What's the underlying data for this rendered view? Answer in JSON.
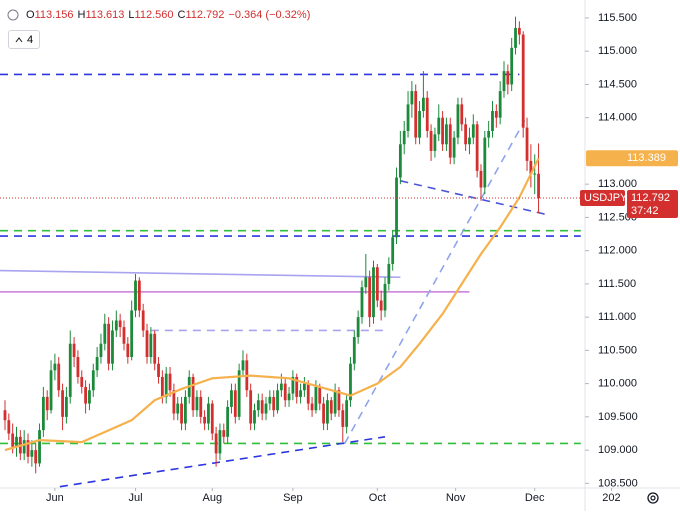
{
  "chart_data": {
    "type": "candlestick",
    "header": [
      "O",
      "113.156",
      "H",
      "113.613",
      "L",
      "112.560",
      "C",
      "112.792",
      "−0.364 (−0.32%)"
    ],
    "indicator_count": "4",
    "symbol": "USDJPY",
    "countdown": "37:42",
    "up_color": "#1b8a3a",
    "down_color": "#d32f2f",
    "candles": [
      [
        109.6,
        109.75,
        109.3,
        109.45
      ],
      [
        109.45,
        109.55,
        109.15,
        109.25
      ],
      [
        109.25,
        109.4,
        108.95,
        109.05
      ],
      [
        109.05,
        109.35,
        108.9,
        109.2
      ],
      [
        109.2,
        109.3,
        108.85,
        108.95
      ],
      [
        108.95,
        109.3,
        108.85,
        109.15
      ],
      [
        109.15,
        109.25,
        108.8,
        108.9
      ],
      [
        108.9,
        109.15,
        108.75,
        109.0
      ],
      [
        109.0,
        109.1,
        108.65,
        108.8
      ],
      [
        108.8,
        109.4,
        108.75,
        109.3
      ],
      [
        109.3,
        109.95,
        109.2,
        109.8
      ],
      [
        109.8,
        109.9,
        109.45,
        109.6
      ],
      [
        109.6,
        110.35,
        109.55,
        110.2
      ],
      [
        110.2,
        110.45,
        110.05,
        110.3
      ],
      [
        110.3,
        110.4,
        109.8,
        109.9
      ],
      [
        109.9,
        110.0,
        109.3,
        109.5
      ],
      [
        109.5,
        109.95,
        109.4,
        109.8
      ],
      [
        109.8,
        110.8,
        109.7,
        110.6
      ],
      [
        110.6,
        110.7,
        110.25,
        110.4
      ],
      [
        110.4,
        110.5,
        110.0,
        110.1
      ],
      [
        110.1,
        110.2,
        109.85,
        109.95
      ],
      [
        109.95,
        110.05,
        109.55,
        109.7
      ],
      [
        109.7,
        110.0,
        109.6,
        109.9
      ],
      [
        109.9,
        110.3,
        109.8,
        110.2
      ],
      [
        110.2,
        110.55,
        110.1,
        110.4
      ],
      [
        110.4,
        110.75,
        110.3,
        110.6
      ],
      [
        110.6,
        111.05,
        110.5,
        110.9
      ],
      [
        110.9,
        111.0,
        110.2,
        110.3
      ],
      [
        110.3,
        110.95,
        110.2,
        110.8
      ],
      [
        110.8,
        111.1,
        110.7,
        110.95
      ],
      [
        110.95,
        111.05,
        110.7,
        110.85
      ],
      [
        110.85,
        110.95,
        110.5,
        110.6
      ],
      [
        110.6,
        110.7,
        110.3,
        110.4
      ],
      [
        110.4,
        111.25,
        110.35,
        111.1
      ],
      [
        111.1,
        111.65,
        111.0,
        111.55
      ],
      [
        111.55,
        111.6,
        111.0,
        111.1
      ],
      [
        111.1,
        111.2,
        110.7,
        110.8
      ],
      [
        110.8,
        110.9,
        110.3,
        110.4
      ],
      [
        110.4,
        110.85,
        110.3,
        110.75
      ],
      [
        110.75,
        110.8,
        110.2,
        110.3
      ],
      [
        110.3,
        110.4,
        110.0,
        110.1
      ],
      [
        110.1,
        110.2,
        109.7,
        109.8
      ],
      [
        109.8,
        110.25,
        109.7,
        110.15
      ],
      [
        110.15,
        110.25,
        109.8,
        109.9
      ],
      [
        109.9,
        110.0,
        109.45,
        109.55
      ],
      [
        109.55,
        109.8,
        109.45,
        109.7
      ],
      [
        109.7,
        109.8,
        109.3,
        109.4
      ],
      [
        109.4,
        109.9,
        109.3,
        109.8
      ],
      [
        109.8,
        110.2,
        109.7,
        110.1
      ],
      [
        110.1,
        110.15,
        109.5,
        109.6
      ],
      [
        109.6,
        109.9,
        109.5,
        109.8
      ],
      [
        109.8,
        109.9,
        109.4,
        109.5
      ],
      [
        109.5,
        109.6,
        109.3,
        109.4
      ],
      [
        109.4,
        109.8,
        109.3,
        109.7
      ],
      [
        109.7,
        109.75,
        109.15,
        109.25
      ],
      [
        109.25,
        109.35,
        108.75,
        108.95
      ],
      [
        108.95,
        109.4,
        108.85,
        109.3
      ],
      [
        109.3,
        109.4,
        109.1,
        109.2
      ],
      [
        109.2,
        109.75,
        109.1,
        109.65
      ],
      [
        109.65,
        110.0,
        109.55,
        109.9
      ],
      [
        109.9,
        110.0,
        109.4,
        109.5
      ],
      [
        109.5,
        110.3,
        109.45,
        110.2
      ],
      [
        110.2,
        110.5,
        110.1,
        110.35
      ],
      [
        110.35,
        110.45,
        109.8,
        109.9
      ],
      [
        109.9,
        110.0,
        109.3,
        109.4
      ],
      [
        109.4,
        109.7,
        109.3,
        109.6
      ],
      [
        109.6,
        109.85,
        109.5,
        109.75
      ],
      [
        109.75,
        109.85,
        109.45,
        109.55
      ],
      [
        109.55,
        109.8,
        109.45,
        109.7
      ],
      [
        109.7,
        109.9,
        109.6,
        109.8
      ],
      [
        109.8,
        109.9,
        109.5,
        109.6
      ],
      [
        109.6,
        110.0,
        109.55,
        109.9
      ],
      [
        109.9,
        110.15,
        109.8,
        110.0
      ],
      [
        110.0,
        110.1,
        109.65,
        109.75
      ],
      [
        109.75,
        109.95,
        109.65,
        109.85
      ],
      [
        109.85,
        110.2,
        109.75,
        110.1
      ],
      [
        110.1,
        110.15,
        109.7,
        109.8
      ],
      [
        109.8,
        110.0,
        109.7,
        109.9
      ],
      [
        109.9,
        110.1,
        109.8,
        110.0
      ],
      [
        110.0,
        110.05,
        109.6,
        109.7
      ],
      [
        109.7,
        109.8,
        109.5,
        109.6
      ],
      [
        109.6,
        110.05,
        109.55,
        109.95
      ],
      [
        109.95,
        110.0,
        109.6,
        109.7
      ],
      [
        109.7,
        109.8,
        109.3,
        109.4
      ],
      [
        109.4,
        109.85,
        109.3,
        109.75
      ],
      [
        109.75,
        109.8,
        109.45,
        109.55
      ],
      [
        109.55,
        110.0,
        109.5,
        109.9
      ],
      [
        109.9,
        109.95,
        109.5,
        109.6
      ],
      [
        109.6,
        109.7,
        109.12,
        109.35
      ],
      [
        109.35,
        109.85,
        109.25,
        109.75
      ],
      [
        109.75,
        110.4,
        109.65,
        110.3
      ],
      [
        110.3,
        110.8,
        110.2,
        110.7
      ],
      [
        110.7,
        111.1,
        110.6,
        111.0
      ],
      [
        111.0,
        111.55,
        110.9,
        111.45
      ],
      [
        111.45,
        111.95,
        111.35,
        111.6
      ],
      [
        111.6,
        111.7,
        110.85,
        111.0
      ],
      [
        111.0,
        111.85,
        110.9,
        111.75
      ],
      [
        111.75,
        111.8,
        111.15,
        111.25
      ],
      [
        111.25,
        111.4,
        110.95,
        111.1
      ],
      [
        111.1,
        111.6,
        111.0,
        111.5
      ],
      [
        111.5,
        111.9,
        111.4,
        111.8
      ],
      [
        111.8,
        112.3,
        111.7,
        112.2
      ],
      [
        112.2,
        113.25,
        112.1,
        113.1
      ],
      [
        113.1,
        113.8,
        113.0,
        113.6
      ],
      [
        113.6,
        113.95,
        113.45,
        113.8
      ],
      [
        113.8,
        114.4,
        113.7,
        114.2
      ],
      [
        114.2,
        114.55,
        114.0,
        114.4
      ],
      [
        114.4,
        114.5,
        113.6,
        113.7
      ],
      [
        113.7,
        114.25,
        113.6,
        114.1
      ],
      [
        114.1,
        114.7,
        114.0,
        114.3
      ],
      [
        114.3,
        114.4,
        113.7,
        113.8
      ],
      [
        113.8,
        113.9,
        113.35,
        113.5
      ],
      [
        113.5,
        113.85,
        113.4,
        113.75
      ],
      [
        113.75,
        114.2,
        113.65,
        114.0
      ],
      [
        114.0,
        114.1,
        113.5,
        113.6
      ],
      [
        113.6,
        114.0,
        113.5,
        113.9
      ],
      [
        113.9,
        114.0,
        113.3,
        113.4
      ],
      [
        113.4,
        113.8,
        113.3,
        113.7
      ],
      [
        113.7,
        114.3,
        113.6,
        114.2
      ],
      [
        114.2,
        114.3,
        113.8,
        113.9
      ],
      [
        113.9,
        114.0,
        113.5,
        113.6
      ],
      [
        113.6,
        113.85,
        113.45,
        113.7
      ],
      [
        113.7,
        114.05,
        113.6,
        113.9
      ],
      [
        113.9,
        113.95,
        113.1,
        113.2
      ],
      [
        113.2,
        113.3,
        112.75,
        112.95
      ],
      [
        112.95,
        113.8,
        112.85,
        113.7
      ],
      [
        113.7,
        113.95,
        113.55,
        113.8
      ],
      [
        113.8,
        114.25,
        113.7,
        114.1
      ],
      [
        114.1,
        114.2,
        113.85,
        114.0
      ],
      [
        114.0,
        114.55,
        113.9,
        114.4
      ],
      [
        114.4,
        114.85,
        114.3,
        114.7
      ],
      [
        114.7,
        114.8,
        114.35,
        114.5
      ],
      [
        114.5,
        115.2,
        114.4,
        115.05
      ],
      [
        115.05,
        115.52,
        114.95,
        115.35
      ],
      [
        115.35,
        115.45,
        115.1,
        115.25
      ],
      [
        115.25,
        115.3,
        113.7,
        113.85
      ],
      [
        113.85,
        114.0,
        113.2,
        113.35
      ],
      [
        113.35,
        113.6,
        112.95,
        113.15
      ],
      [
        113.15,
        113.45,
        112.85,
        113.16
      ],
      [
        113.156,
        113.613,
        112.56,
        112.792
      ]
    ],
    "ma": {
      "color": "#f5b14c",
      "x": [
        0,
        9,
        20,
        33,
        39,
        46,
        54,
        64,
        74,
        82,
        90,
        97,
        103,
        108,
        114,
        119,
        124,
        129,
        134,
        139
      ],
      "values": [
        109.0,
        109.15,
        109.12,
        109.45,
        109.75,
        109.92,
        110.08,
        110.12,
        110.08,
        109.95,
        109.82,
        110.0,
        110.25,
        110.6,
        111.05,
        111.5,
        111.95,
        112.35,
        112.8,
        113.389
      ]
    },
    "drawings": [
      {
        "x": [
          -1.3,
          134
        ],
        "y": [
          114.65,
          114.65
        ],
        "color": "#2b35e0",
        "dash": true
      },
      {
        "x": [
          -1.3,
          150
        ],
        "y": [
          112.3,
          112.3
        ],
        "color": "#2fbf3a",
        "dash": true
      },
      {
        "x": [
          -1.3,
          150
        ],
        "y": [
          112.22,
          112.22
        ],
        "color": "#2b35e0",
        "dash": true
      },
      {
        "x": [
          -1.3,
          103
        ],
        "y": [
          111.7,
          111.6
        ],
        "color": "#a9a4f0",
        "dash": false
      },
      {
        "x": [
          -1.3,
          121
        ],
        "y": [
          111.38,
          111.38
        ],
        "color": "#c77ad8",
        "dash": false
      },
      {
        "x": [
          38,
          100
        ],
        "y": [
          110.8,
          110.8
        ],
        "color": "#a9a4f0",
        "dash": true
      },
      {
        "x": [
          -1.3,
          150
        ],
        "y": [
          109.1,
          109.1
        ],
        "color": "#2fbf3a",
        "dash": true
      },
      {
        "x": [
          14.3,
          99
        ],
        "y": [
          108.45,
          109.2
        ],
        "color": "#2b35e0",
        "dash": true
      },
      {
        "x": [
          88.5,
          135.4
        ],
        "y": [
          109.1,
          113.96
        ],
        "color": "#8fa4ec",
        "dash": true
      },
      {
        "x": [
          103,
          140.6
        ],
        "y": [
          113.05,
          112.55
        ],
        "color": "#4a55d8",
        "dash": true
      }
    ],
    "price_line_color": "#d32f2f",
    "xlim": [
      -1.3,
      151.1
    ],
    "ylim": [
      108.43,
      115.77
    ],
    "yticks": [
      {
        "value": 108.5,
        "label": "108.500"
      },
      {
        "value": 109,
        "label": "109.000"
      },
      {
        "value": 109.5,
        "label": "109.500"
      },
      {
        "value": 110,
        "label": "110.000"
      },
      {
        "value": 110.5,
        "label": "110.500"
      },
      {
        "value": 111,
        "label": "111.000"
      },
      {
        "value": 111.5,
        "label": "111.500"
      },
      {
        "value": 112,
        "label": "112.000"
      },
      {
        "value": 112.5,
        "label": "112.500"
      },
      {
        "value": 113,
        "label": "113.000"
      },
      {
        "value": 114,
        "label": "114.000"
      },
      {
        "value": 114.5,
        "label": "114.500"
      },
      {
        "value": 115,
        "label": "115.000"
      },
      {
        "value": 115.5,
        "label": "115.500"
      }
    ],
    "xticks": [
      {
        "value": 13,
        "label": "Jun"
      },
      {
        "value": 34,
        "label": "Jul"
      },
      {
        "value": 54,
        "label": "Aug"
      },
      {
        "value": 75,
        "label": "Sep"
      },
      {
        "value": 97,
        "label": "Oct"
      },
      {
        "value": 117.4,
        "label": "Nov"
      },
      {
        "value": 138,
        "label": "Dec"
      },
      {
        "value": 158,
        "label": "202"
      }
    ]
  }
}
